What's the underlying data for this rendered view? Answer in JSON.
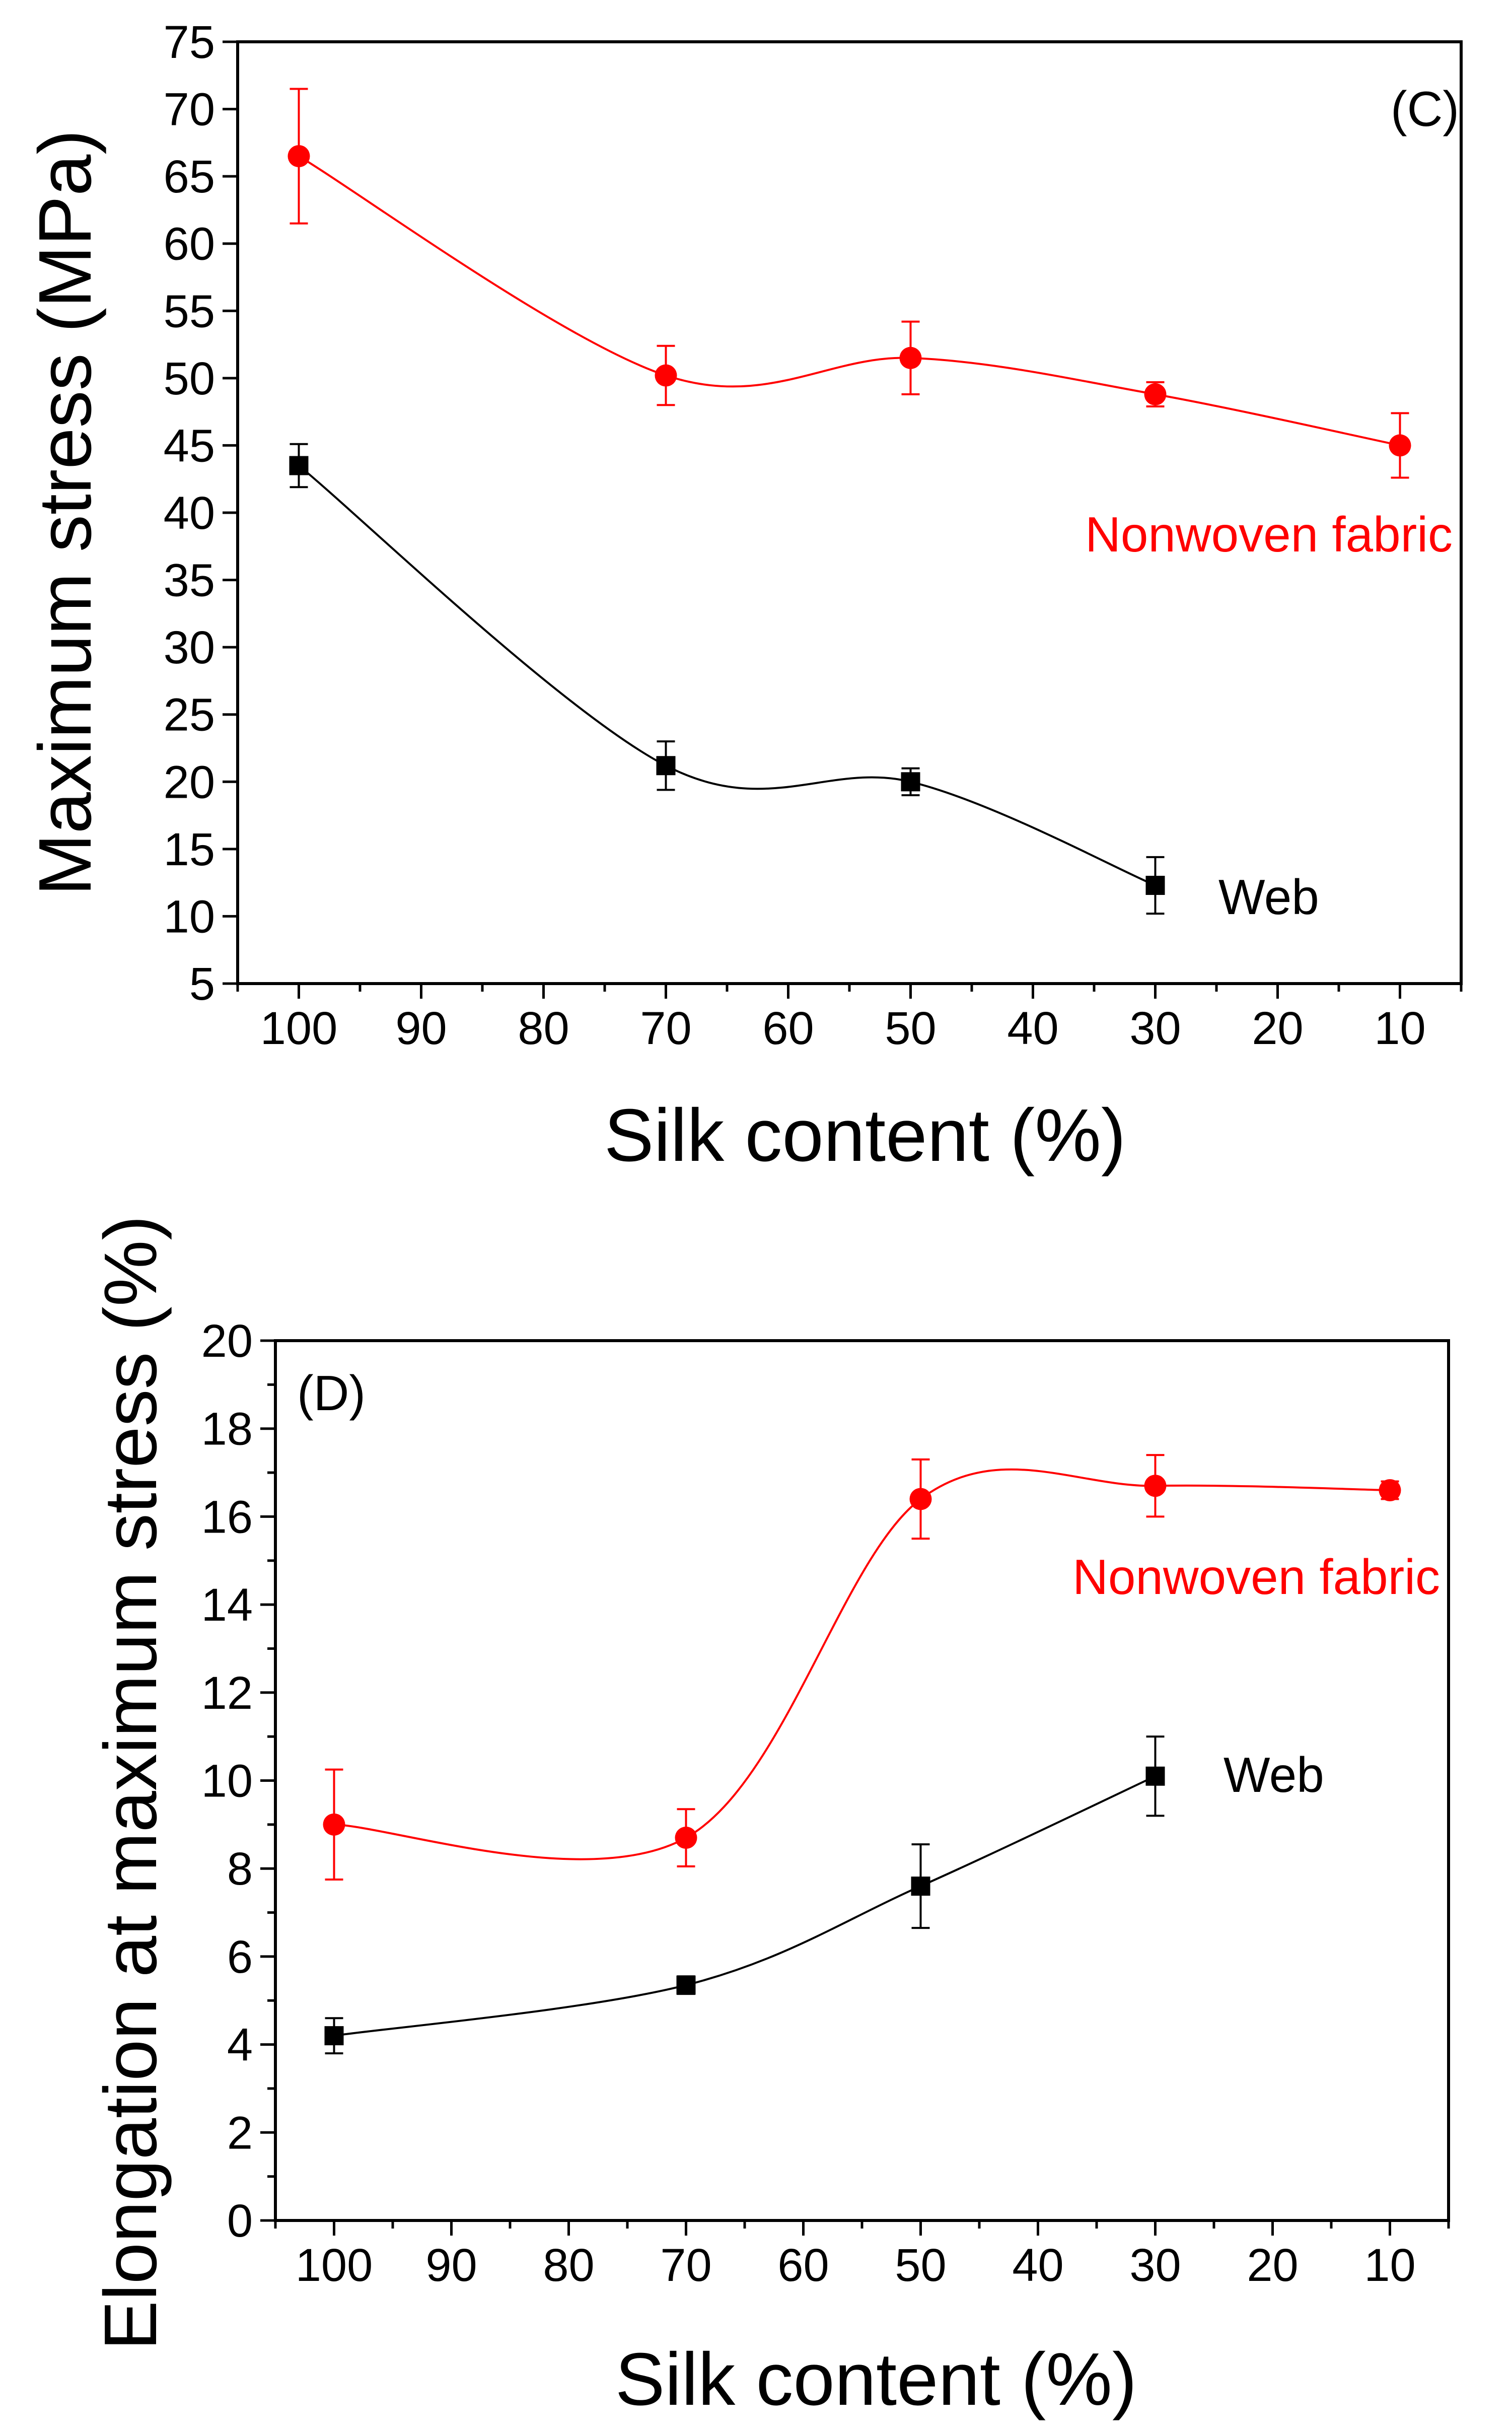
{
  "chart_data": [
    {
      "type": "line",
      "panel_label": "(C)",
      "xlabel": "Silk content (%)",
      "ylabel": "Maximum stress (MPa)",
      "x_reversed": true,
      "xlim": [
        105,
        5
      ],
      "ylim": [
        5,
        75
      ],
      "x_ticks": [
        "100",
        "90",
        "80",
        "70",
        "60",
        "50",
        "40",
        "30",
        "20",
        "10"
      ],
      "y_ticks": [
        "5",
        "10",
        "15",
        "20",
        "25",
        "30",
        "35",
        "40",
        "45",
        "50",
        "55",
        "60",
        "65",
        "70",
        "75"
      ],
      "series": [
        {
          "name": "Nonwoven fabric",
          "color": "#ff0000",
          "marker": "circle",
          "x": [
            100,
            70,
            50,
            30,
            10
          ],
          "y": [
            66.5,
            50.2,
            51.5,
            48.8,
            45.0
          ],
          "err": [
            5.0,
            2.2,
            2.7,
            0.9,
            2.4
          ]
        },
        {
          "name": "Web",
          "color": "#000000",
          "marker": "square",
          "x": [
            100,
            70,
            50,
            30
          ],
          "y": [
            43.5,
            21.2,
            20.0,
            12.3
          ],
          "err": [
            1.6,
            1.8,
            1.0,
            2.1
          ]
        }
      ]
    },
    {
      "type": "line",
      "panel_label": "(D)",
      "xlabel": "Silk content (%)",
      "ylabel": "Elongation at maximum stress (%)",
      "x_reversed": true,
      "xlim": [
        105,
        5
      ],
      "ylim": [
        0,
        20
      ],
      "x_ticks": [
        "100",
        "90",
        "80",
        "70",
        "60",
        "50",
        "40",
        "30",
        "20",
        "10"
      ],
      "y_ticks": [
        "0",
        "2",
        "4",
        "6",
        "8",
        "10",
        "12",
        "14",
        "16",
        "18",
        "20"
      ],
      "series": [
        {
          "name": "Nonwoven fabric",
          "color": "#ff0000",
          "marker": "circle",
          "x": [
            100,
            70,
            50,
            30,
            10
          ],
          "y": [
            9.0,
            8.7,
            16.4,
            16.7,
            16.6
          ],
          "err": [
            1.25,
            0.65,
            0.9,
            0.7,
            0.2
          ]
        },
        {
          "name": "Web",
          "color": "#000000",
          "marker": "square",
          "x": [
            100,
            70,
            50,
            30
          ],
          "y": [
            4.2,
            5.35,
            7.6,
            10.1
          ],
          "err": [
            0.4,
            0.2,
            0.95,
            0.9
          ]
        }
      ]
    }
  ]
}
